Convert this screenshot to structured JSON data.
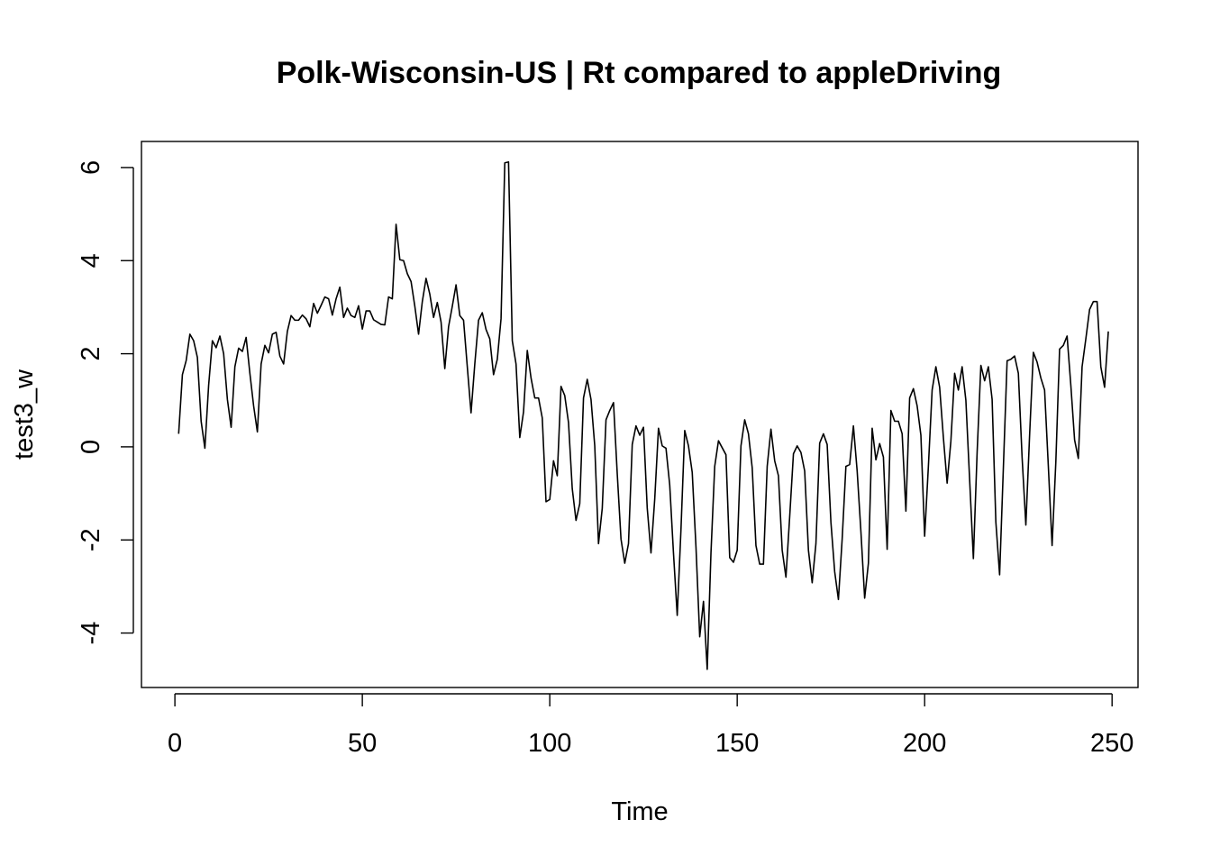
{
  "chart_data": {
    "type": "line",
    "title": "Polk-Wisconsin-US | Rt compared to appleDriving",
    "xlabel": "Time",
    "ylabel": "test3_w",
    "xlim": [
      -8.92,
      256.92
    ],
    "ylim": [
      -5.17,
      6.56
    ],
    "x_ticks": [
      0,
      50,
      100,
      150,
      200,
      250
    ],
    "x_tick_labels": [
      "0",
      "50",
      "100",
      "150",
      "200",
      "250"
    ],
    "y_ticks": [
      -4,
      -2,
      0,
      2,
      4,
      6
    ],
    "y_tick_labels": [
      "-4",
      "-2",
      "0",
      "2",
      "4",
      "6"
    ],
    "grid": false,
    "line_color": "#000000",
    "series": [
      {
        "x_start": 1,
        "x_step": 1,
        "values": [
          0.28,
          1.55,
          1.85,
          2.42,
          2.28,
          1.92,
          0.55,
          -0.03,
          1.32,
          2.28,
          2.13,
          2.38,
          2.0,
          1.02,
          0.42,
          1.72,
          2.12,
          2.05,
          2.35,
          1.58,
          0.88,
          0.32,
          1.78,
          2.18,
          2.02,
          2.42,
          2.46,
          1.95,
          1.78,
          2.48,
          2.82,
          2.72,
          2.72,
          2.83,
          2.75,
          2.58,
          3.08,
          2.87,
          3.04,
          3.22,
          3.18,
          2.83,
          3.18,
          3.43,
          2.78,
          2.98,
          2.82,
          2.78,
          3.03,
          2.53,
          2.92,
          2.92,
          2.73,
          2.68,
          2.63,
          2.62,
          3.22,
          3.18,
          4.78,
          4.02,
          4.0,
          3.72,
          3.55,
          3.02,
          2.42,
          3.12,
          3.62,
          3.28,
          2.78,
          3.1,
          2.68,
          1.68,
          2.58,
          3.02,
          3.48,
          2.82,
          2.72,
          1.72,
          0.73,
          1.78,
          2.72,
          2.88,
          2.52,
          2.32,
          1.55,
          1.88,
          2.75,
          6.1,
          6.12,
          2.28,
          1.78,
          0.2,
          0.75,
          2.07,
          1.48,
          1.05,
          1.05,
          0.62,
          -1.18,
          -1.13,
          -0.3,
          -0.62,
          1.3,
          1.1,
          0.52,
          -0.9,
          -1.58,
          -1.22,
          1.05,
          1.45,
          1.02,
          0.02,
          -2.08,
          -1.32,
          0.58,
          0.78,
          0.95,
          -0.58,
          -1.98,
          -2.5,
          -2.08,
          0.05,
          0.45,
          0.25,
          0.42,
          -1.32,
          -2.28,
          -1.12,
          0.4,
          0.02,
          -0.03,
          -0.82,
          -2.28,
          -3.62,
          -1.78,
          0.35,
          0.02,
          -0.55,
          -2.15,
          -4.08,
          -3.32,
          -4.78,
          -2.28,
          -0.42,
          0.13,
          -0.02,
          -0.17,
          -2.38,
          -2.48,
          -2.22,
          0.02,
          0.58,
          0.28,
          -0.45,
          -2.12,
          -2.52,
          -2.52,
          -0.42,
          0.38,
          -0.3,
          -0.62,
          -2.22,
          -2.8,
          -1.5,
          -0.15,
          0.02,
          -0.12,
          -0.52,
          -2.22,
          -2.92,
          -2.08,
          0.08,
          0.28,
          0.05,
          -1.62,
          -2.68,
          -3.28,
          -1.98,
          -0.42,
          -0.38,
          0.45,
          -0.52,
          -1.82,
          -3.25,
          -2.5,
          0.4,
          -0.28,
          0.07,
          -0.22,
          -2.2,
          0.78,
          0.55,
          0.55,
          0.28,
          -1.38,
          1.05,
          1.25,
          0.88,
          0.25,
          -1.92,
          -0.42,
          1.22,
          1.72,
          1.28,
          0.2,
          -0.78,
          0.12,
          1.58,
          1.22,
          1.72,
          1.0,
          -0.7,
          -2.4,
          -0.12,
          1.75,
          1.42,
          1.72,
          1.02,
          -1.62,
          -2.75,
          -0.45,
          1.85,
          1.88,
          1.95,
          1.58,
          -0.23,
          -1.68,
          0.25,
          2.03,
          1.82,
          1.48,
          1.22,
          -0.42,
          -2.12,
          -0.32,
          2.1,
          2.18,
          2.38,
          1.32,
          0.15,
          -0.25,
          1.72,
          2.32,
          2.95,
          3.12,
          3.12,
          1.72,
          1.28,
          2.48
        ]
      }
    ]
  }
}
